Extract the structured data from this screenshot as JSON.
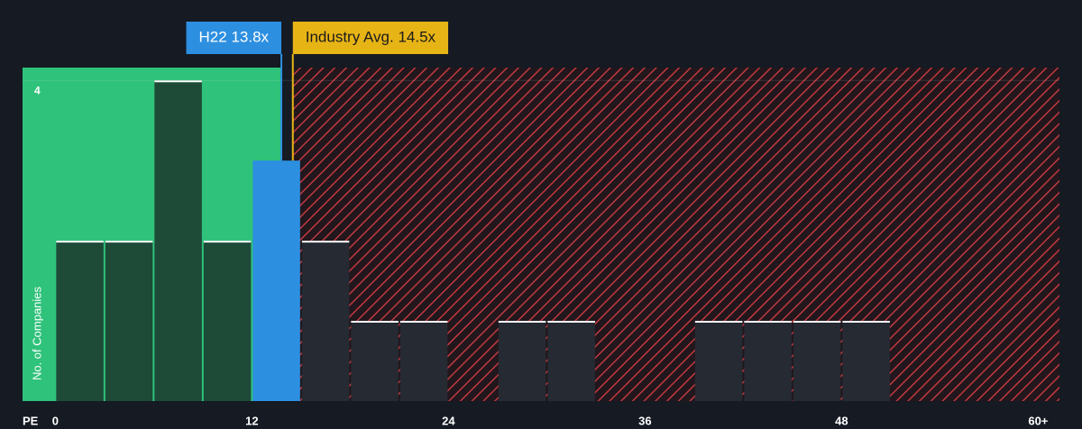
{
  "chart_data": {
    "type": "histogram",
    "xlabel": "PE",
    "ylabel": "No. of Companies",
    "bins": [
      0,
      3,
      6,
      9,
      12,
      15,
      18,
      21,
      24,
      27,
      30,
      33,
      36,
      39,
      42,
      45,
      48,
      51
    ],
    "counts": [
      2,
      2,
      4,
      2,
      3,
      2,
      1,
      1,
      0,
      1,
      1,
      0,
      0,
      1,
      1,
      1,
      1
    ],
    "xlim": [
      -2,
      61.3
    ],
    "xticks": [
      0,
      12,
      24,
      36,
      48,
      {
        "value": 60,
        "label": "60+"
      }
    ],
    "ylim": [
      0,
      4.16
    ],
    "yticks": [
      4
    ],
    "company": {
      "label": "H22 13.8x",
      "value": 13.8,
      "color": "#2d8fe0"
    },
    "industry": {
      "label": "Industry Avg. 14.5x",
      "value": 14.5,
      "color": "#e7b416"
    },
    "colors": {
      "below": "#2fc27a",
      "below_bar": "#1e4a38",
      "above": "#c0393f",
      "above_bar": "#262a33",
      "bar_top": "#ffffff"
    }
  }
}
